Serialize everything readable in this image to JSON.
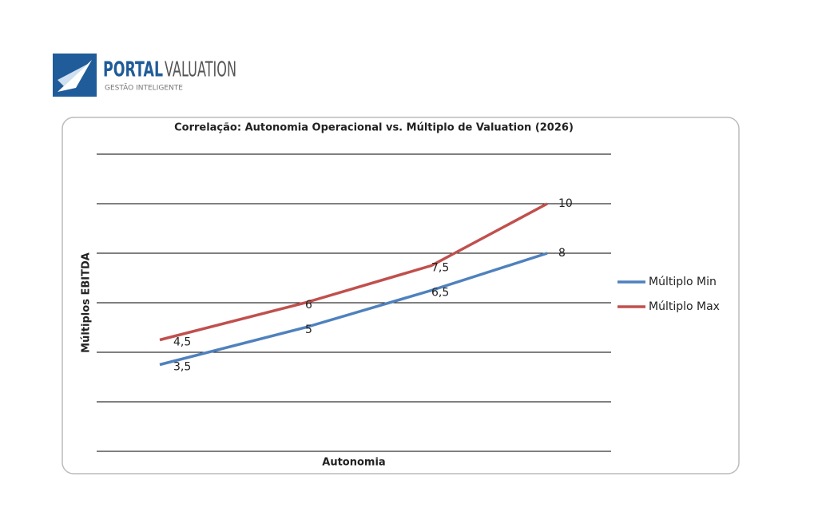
{
  "logo": {
    "brand_first": "PORTAL",
    "brand_second": "VALUATION",
    "tagline": "GESTÃO INTELIGENTE"
  },
  "chart_data": {
    "type": "line",
    "title": "Correlação: Autonomia Operacional vs. Múltiplo de Valuation (2026)",
    "x_label": "Autonomia",
    "y_label": "Múltiplos EBITDA",
    "categories": [
      null,
      null,
      null,
      null
    ],
    "series": [
      {
        "name": "Múltiplo Min",
        "color": "#4f81bd",
        "values": [
          3.5,
          5,
          6.5,
          8
        ],
        "value_labels": [
          "3,5",
          "5",
          "6,5",
          "8"
        ]
      },
      {
        "name": "Múltiplo Max",
        "color": "#c0504d",
        "values": [
          4.5,
          6,
          7.5,
          10
        ],
        "value_labels": [
          "4,5",
          "6",
          "7,5",
          "10"
        ]
      }
    ],
    "ylim": [
      0,
      12
    ],
    "yticks": [
      0,
      2,
      4,
      6,
      8,
      10,
      12
    ],
    "grid": true,
    "legend": "right"
  }
}
